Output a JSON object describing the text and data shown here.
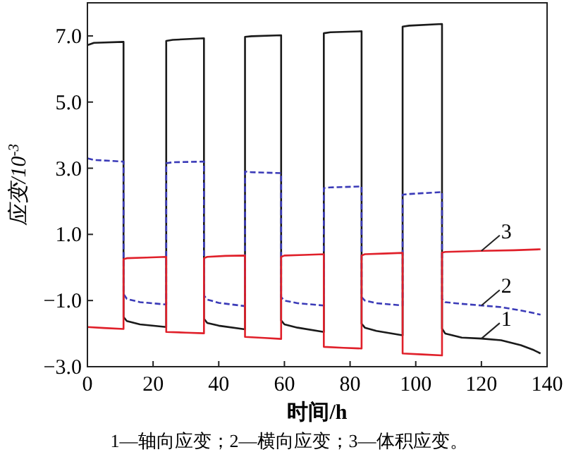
{
  "chart_data": {
    "type": "line",
    "xlabel": "时间/h",
    "ylabel": "应变/10$^{-3}$",
    "xlim": [
      0,
      140
    ],
    "ylim": [
      -3,
      8
    ],
    "xticks": [
      0,
      20,
      40,
      60,
      80,
      100,
      120,
      140
    ],
    "yticks": [
      {
        "value": -3,
        "label": "−3.0"
      },
      {
        "value": -1,
        "label": "−1.0"
      },
      {
        "value": 1,
        "label": "1.0"
      },
      {
        "value": 3,
        "label": "3.0"
      },
      {
        "value": 5,
        "label": "5.0"
      },
      {
        "value": 7,
        "label": "7.0"
      }
    ],
    "grid": false,
    "legend": false,
    "marker": "none",
    "series": [
      {
        "color": "#1a1a1a",
        "line_style": "solid",
        "x": [
          0,
          2,
          11,
          11,
          12,
          16,
          24,
          24,
          26,
          35.5,
          35.5,
          36.5,
          40,
          48,
          48,
          50,
          59,
          59,
          60,
          64,
          72,
          72,
          74,
          83.5,
          83.5,
          84.5,
          88,
          96,
          96,
          98,
          108,
          108,
          109,
          114,
          120,
          126,
          132,
          136,
          138
        ],
        "values": [
          6.72,
          6.79,
          6.82,
          -1.5,
          -1.62,
          -1.72,
          -1.8,
          6.85,
          6.88,
          6.93,
          -1.55,
          -1.68,
          -1.76,
          -1.87,
          6.97,
          6.99,
          7.02,
          -1.6,
          -1.72,
          -1.82,
          -1.95,
          7.08,
          7.11,
          7.14,
          -1.7,
          -1.82,
          -1.92,
          -2.05,
          7.28,
          7.31,
          7.36,
          -1.85,
          -2.0,
          -2.12,
          -2.15,
          -2.2,
          -2.35,
          -2.5,
          -2.6
        ]
      },
      {
        "color": "#3b3bb8",
        "line_style": "dashed",
        "x": [
          0,
          2,
          11,
          11,
          12,
          16,
          24,
          24,
          26,
          35.5,
          35.5,
          36.5,
          40,
          48,
          48,
          50,
          59,
          59,
          60,
          64,
          72,
          72,
          74,
          83.5,
          83.5,
          84.5,
          88,
          96,
          96,
          98,
          108,
          108,
          109,
          114,
          120,
          126,
          132,
          136,
          138
        ],
        "values": [
          3.3,
          3.25,
          3.2,
          -0.8,
          -0.95,
          -1.05,
          -1.12,
          3.15,
          3.18,
          3.2,
          -0.85,
          -0.97,
          -1.07,
          -1.17,
          2.9,
          2.88,
          2.85,
          -0.9,
          -1.0,
          -1.08,
          -1.15,
          2.4,
          2.42,
          2.45,
          -0.9,
          -1.0,
          -1.08,
          -1.15,
          2.2,
          2.22,
          2.28,
          -0.95,
          -1.05,
          -1.1,
          -1.15,
          -1.2,
          -1.3,
          -1.38,
          -1.43
        ]
      },
      {
        "color": "#e0202a",
        "line_style": "solid",
        "x": [
          0,
          5,
          11,
          11,
          12,
          18,
          24,
          24,
          30,
          35.5,
          35.5,
          36.5,
          42,
          48,
          48,
          54,
          59,
          59,
          60,
          66,
          72,
          72,
          78,
          83.5,
          83.5,
          84.5,
          90,
          96,
          96,
          102,
          108,
          108,
          109,
          120,
          130,
          138
        ],
        "values": [
          -1.8,
          -1.83,
          -1.86,
          0.25,
          0.28,
          0.3,
          0.32,
          -1.95,
          -1.97,
          -1.99,
          0.28,
          0.32,
          0.35,
          0.36,
          -2.1,
          -2.13,
          -2.16,
          0.32,
          0.36,
          0.38,
          0.4,
          -2.4,
          -2.43,
          -2.45,
          0.36,
          0.4,
          0.42,
          0.44,
          -2.6,
          -2.63,
          -2.66,
          0.45,
          0.47,
          0.5,
          0.52,
          0.55
        ]
      }
    ],
    "annotations": [
      "1",
      "2",
      "3",
      "1—轴向应变；2—横向应变；3—体积应变。"
    ]
  }
}
